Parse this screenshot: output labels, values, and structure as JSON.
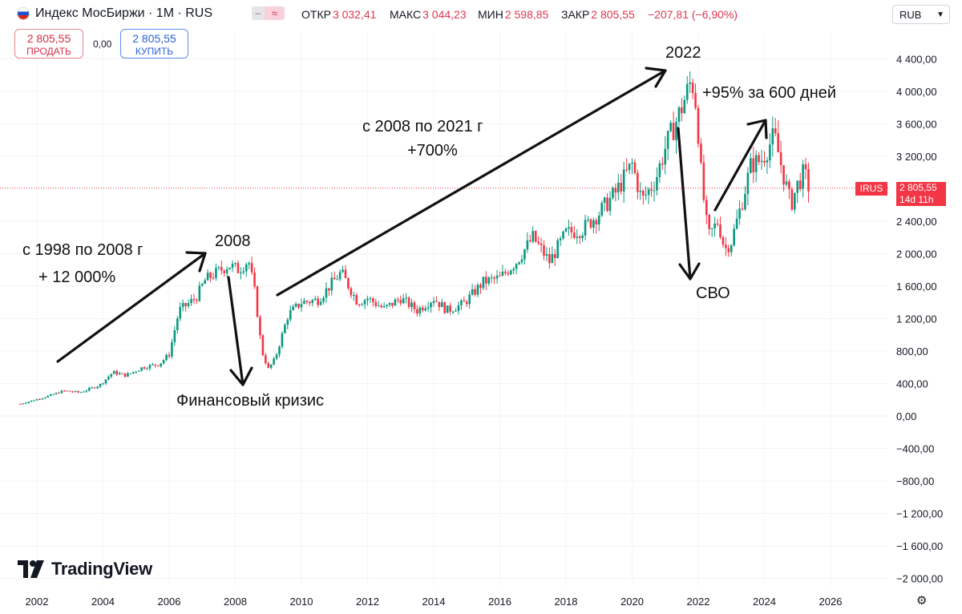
{
  "header": {
    "title": "Индекс МосБиржи · 1M · RUS",
    "hide_icon": "–",
    "compare_icon": "≈",
    "open_label": "ОТКР",
    "open_value": "3 032,41",
    "high_label": "МАКС",
    "high_value": "3 044,23",
    "low_label": "МИН",
    "low_value": "2 598,85",
    "close_label": "ЗАКР",
    "close_value": "2 805,55",
    "change_value": "−207,81 (−6,90%)",
    "currency": "RUB"
  },
  "trade": {
    "sell_price": "2 805,55",
    "sell_label": "ПРОДАТЬ",
    "spread": "0,00",
    "buy_price": "2 805,55",
    "buy_label": "КУПИТЬ"
  },
  "price_tag": {
    "symbol": "IRUS",
    "value": "2 805,55",
    "countdown": "14d 11h"
  },
  "branding": {
    "name": "TradingView"
  },
  "colors": {
    "up": "#089981",
    "down": "#f23645",
    "annotation": "#111111"
  },
  "chart_data": {
    "type": "candlestick",
    "title": "Индекс МосБиржи · 1M · RUS",
    "ylim": [
      -2100,
      4700
    ],
    "xlim": [
      2001.5,
      2027.5
    ],
    "y_ticks": [
      -2000,
      -1600,
      -1200,
      -800,
      -400,
      0,
      400,
      800,
      1200,
      1600,
      2000,
      2400,
      3200,
      3600,
      4000,
      4400
    ],
    "y_tick_labels": [
      "−2 000,00",
      "−1 600,00",
      "−1 200,00",
      "−800,00",
      "−400,00",
      "0,00",
      "400,00",
      "800,00",
      "1 200,00",
      "1 600,00",
      "2 000,00",
      "2 400,00",
      "3 200,00",
      "3 600,00",
      "4 000,00",
      "4 400,00"
    ],
    "x_ticks": [
      2002,
      2004,
      2006,
      2008,
      2010,
      2012,
      2014,
      2016,
      2018,
      2020,
      2022,
      2024,
      2026
    ],
    "x_tick_labels": [
      "2002",
      "2004",
      "2006",
      "2008",
      "2010",
      "2012",
      "2014",
      "2016",
      "2018",
      "2020",
      "2022",
      "2024",
      "2026"
    ],
    "last_price": 2805.55,
    "anchors": [
      [
        2001.5,
        150
      ],
      [
        2002.3,
        240
      ],
      [
        2002.8,
        310
      ],
      [
        2003.3,
        290
      ],
      [
        2003.9,
        380
      ],
      [
        2004.3,
        540
      ],
      [
        2004.7,
        500
      ],
      [
        2005.2,
        600
      ],
      [
        2005.7,
        640
      ],
      [
        2006.0,
        760
      ],
      [
        2006.3,
        1300
      ],
      [
        2006.8,
        1450
      ],
      [
        2007.1,
        1680
      ],
      [
        2007.8,
        1860
      ],
      [
        2008.1,
        1800
      ],
      [
        2008.4,
        1920
      ],
      [
        2008.6,
        1500
      ],
      [
        2008.8,
        800
      ],
      [
        2009.0,
        580
      ],
      [
        2009.2,
        700
      ],
      [
        2009.6,
        1250
      ],
      [
        2010.0,
        1400
      ],
      [
        2010.5,
        1430
      ],
      [
        2011.2,
        1770
      ],
      [
        2011.7,
        1400
      ],
      [
        2012.0,
        1450
      ],
      [
        2012.5,
        1320
      ],
      [
        2013.0,
        1450
      ],
      [
        2013.5,
        1300
      ],
      [
        2014.0,
        1450
      ],
      [
        2014.4,
        1300
      ],
      [
        2014.9,
        1380
      ],
      [
        2015.5,
        1650
      ],
      [
        2016.0,
        1700
      ],
      [
        2016.5,
        1900
      ],
      [
        2017.0,
        2200
      ],
      [
        2017.5,
        1900
      ],
      [
        2018.0,
        2250
      ],
      [
        2018.5,
        2300
      ],
      [
        2019.0,
        2500
      ],
      [
        2019.5,
        2750
      ],
      [
        2020.0,
        3100
      ],
      [
        2020.3,
        2650
      ],
      [
        2020.7,
        2900
      ],
      [
        2021.0,
        3300
      ],
      [
        2021.5,
        3800
      ],
      [
        2021.8,
        4150
      ],
      [
        2021.95,
        3800
      ],
      [
        2022.1,
        2900
      ],
      [
        2022.3,
        2200
      ],
      [
        2022.6,
        2400
      ],
      [
        2022.8,
        2050
      ],
      [
        2023.0,
        2150
      ],
      [
        2023.3,
        2600
      ],
      [
        2023.6,
        3100
      ],
      [
        2023.9,
        3150
      ],
      [
        2024.3,
        3450
      ],
      [
        2024.5,
        3100
      ],
      [
        2024.8,
        2600
      ],
      [
        2025.0,
        2850
      ],
      [
        2025.2,
        3000
      ],
      [
        2025.35,
        2805.55
      ]
    ]
  },
  "annotations": {
    "a1_line1": "с 1998 по 2008 г",
    "a1_line2": "+ 12 000%",
    "a2_label": "2008",
    "a3_label": "Финансовый кризис",
    "a4_line1": "с 2008 по 2021 г",
    "a4_line2": "+700%",
    "a5_label": "2022",
    "a6_label": "СВО",
    "a7_label": "+95% за 600 дней"
  }
}
